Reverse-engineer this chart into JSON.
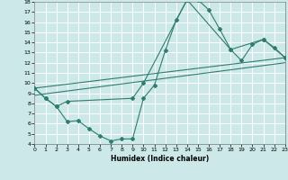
{
  "xlabel": "Humidex (Indice chaleur)",
  "xlim": [
    0,
    23
  ],
  "ylim": [
    4,
    18
  ],
  "xticks": [
    0,
    1,
    2,
    3,
    4,
    5,
    6,
    7,
    8,
    9,
    10,
    11,
    12,
    13,
    14,
    15,
    16,
    17,
    18,
    19,
    20,
    21,
    22,
    23
  ],
  "yticks": [
    4,
    5,
    6,
    7,
    8,
    9,
    10,
    11,
    12,
    13,
    14,
    15,
    16,
    17,
    18
  ],
  "bg_color": "#cce8e8",
  "grid_color": "#aacccc",
  "line_color": "#2e7d6e",
  "curve1_x": [
    0,
    1,
    2,
    3,
    4,
    5,
    6,
    7,
    8,
    9,
    10,
    11,
    12,
    13,
    14,
    15,
    16,
    17,
    18,
    19,
    20,
    21,
    22,
    23
  ],
  "curve1_y": [
    9.5,
    8.5,
    7.7,
    6.2,
    6.3,
    5.5,
    4.8,
    4.3,
    4.5,
    4.5,
    8.5,
    9.8,
    13.2,
    16.2,
    18.2,
    18.2,
    17.2,
    15.3,
    13.3,
    12.2,
    13.8,
    14.3,
    13.5,
    12.5
  ],
  "curve2_x": [
    0,
    1,
    2,
    3,
    9,
    10,
    14,
    18,
    21,
    23
  ],
  "curve2_y": [
    9.5,
    8.5,
    7.7,
    8.2,
    8.5,
    10.0,
    18.2,
    13.3,
    14.3,
    12.5
  ],
  "line3_x": [
    0,
    23
  ],
  "line3_y": [
    9.5,
    12.5
  ],
  "line4_x": [
    0,
    23
  ],
  "line4_y": [
    8.8,
    12.0
  ]
}
